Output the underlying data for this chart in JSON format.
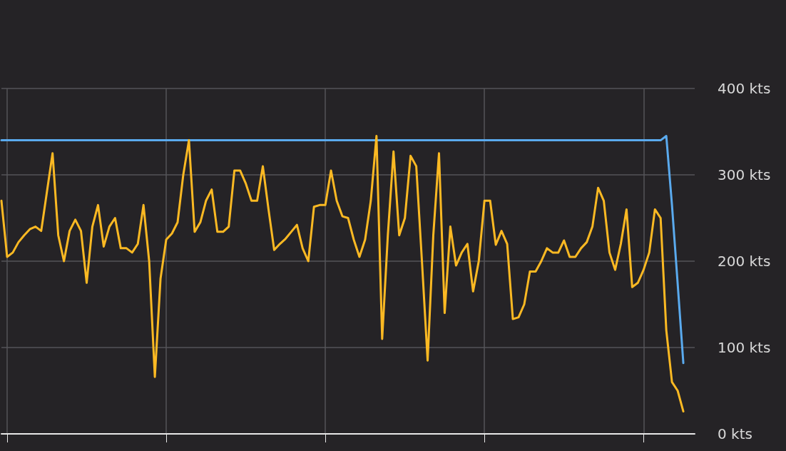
{
  "chart_data": {
    "type": "line",
    "categories": [
      null,
      null,
      null,
      null,
      null,
      null,
      null,
      null,
      null,
      null,
      null,
      null,
      null,
      null,
      null,
      null,
      null,
      null,
      null,
      null,
      null,
      null,
      null,
      null,
      null,
      null,
      null,
      null,
      null,
      null,
      null,
      null,
      null,
      null,
      null,
      null,
      null,
      null,
      null,
      null,
      null,
      null,
      null,
      null,
      null,
      null,
      null,
      null,
      null,
      null,
      null,
      null,
      null,
      null,
      null,
      null,
      null,
      null,
      null,
      null,
      null,
      null,
      null,
      null,
      null,
      null,
      null,
      null,
      null,
      null,
      null,
      null,
      null,
      null,
      null,
      null,
      null,
      null,
      null,
      null,
      null,
      null,
      null,
      null,
      null,
      null,
      null,
      null,
      null,
      null,
      null,
      null,
      null,
      null,
      null,
      null,
      null,
      null,
      null,
      null,
      null,
      null,
      null,
      null,
      null,
      null,
      null,
      null,
      null,
      null,
      null,
      null,
      null,
      null,
      null,
      null,
      null,
      null,
      null,
      null,
      null,
      null,
      null
    ],
    "series": [
      {
        "color": "#5aaaee",
        "values": [
          340,
          340,
          340,
          340,
          340,
          340,
          340,
          340,
          340,
          340,
          340,
          340,
          340,
          340,
          340,
          340,
          340,
          340,
          340,
          340,
          340,
          340,
          340,
          340,
          340,
          340,
          340,
          340,
          340,
          340,
          340,
          340,
          340,
          340,
          340,
          340,
          340,
          340,
          340,
          340,
          340,
          340,
          340,
          340,
          340,
          340,
          340,
          340,
          340,
          340,
          340,
          340,
          340,
          340,
          340,
          340,
          340,
          340,
          340,
          340,
          340,
          340,
          340,
          340,
          340,
          340,
          340,
          340,
          340,
          340,
          340,
          340,
          340,
          340,
          340,
          340,
          340,
          340,
          340,
          340,
          340,
          340,
          340,
          340,
          340,
          340,
          340,
          340,
          340,
          340,
          340,
          340,
          340,
          340,
          340,
          340,
          340,
          340,
          340,
          340,
          340,
          340,
          340,
          340,
          340,
          340,
          340,
          340,
          340,
          340,
          340,
          340,
          340,
          340,
          340,
          340,
          340,
          345,
          265,
          174,
          82,
          null,
          null
        ]
      },
      {
        "color": "#fbb923",
        "values": [
          270,
          205,
          210,
          222,
          230,
          237,
          240,
          235,
          280,
          325,
          230,
          200,
          235,
          248,
          235,
          175,
          240,
          265,
          217,
          240,
          250,
          215,
          215,
          210,
          220,
          265,
          200,
          66,
          180,
          225,
          232,
          245,
          300,
          340,
          234,
          245,
          270,
          283,
          234,
          234,
          240,
          305,
          305,
          290,
          270,
          270,
          310,
          260,
          213,
          220,
          226,
          234,
          242,
          215,
          200,
          263,
          265,
          265,
          305,
          270,
          252,
          250,
          225,
          205,
          225,
          270,
          345,
          110,
          230,
          327,
          230,
          250,
          322,
          310,
          200,
          85,
          230,
          325,
          140,
          240,
          195,
          210,
          220,
          165,
          200,
          270,
          270,
          219,
          235,
          220,
          133,
          135,
          150,
          188,
          188,
          200,
          215,
          210,
          210,
          224,
          205,
          205,
          215,
          222,
          240,
          285,
          270,
          210,
          190,
          220,
          260,
          170,
          175,
          190,
          210,
          260,
          250,
          120,
          60,
          50,
          26,
          null,
          null
        ]
      }
    ],
    "ylim": [
      0,
      400
    ],
    "yticks": [
      {
        "value": 0,
        "label": "0 kts"
      },
      {
        "value": 100,
        "label": "100 kts"
      },
      {
        "value": 200,
        "label": "200 kts"
      },
      {
        "value": 300,
        "label": "300 kts"
      },
      {
        "value": 400,
        "label": "400 kts"
      }
    ],
    "grid": true,
    "tick_labels": "y",
    "line_style": "solid"
  }
}
